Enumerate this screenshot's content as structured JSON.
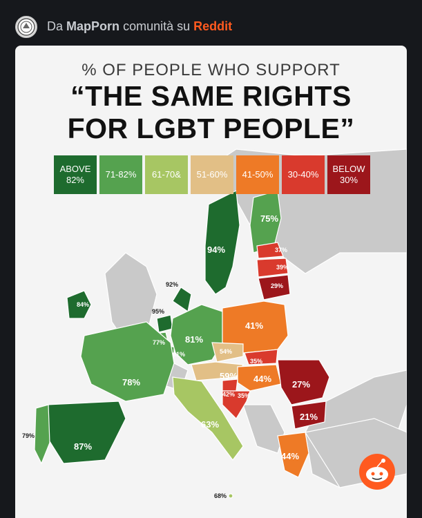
{
  "header": {
    "prefix": "Da",
    "community": "MapPorn",
    "middle": "comunità su",
    "platform": "Reddit"
  },
  "title": {
    "subtitle": "% OF PEOPLE WHO SUPPORT",
    "line1": "“THE SAME RIGHTS",
    "line2": "FOR LGBT PEOPLE”"
  },
  "legend": [
    {
      "label": "ABOVE\n82%",
      "color": "#1e6b2e"
    },
    {
      "label": "71-82%",
      "color": "#55a24f"
    },
    {
      "label": "61-70&",
      "color": "#a7c663"
    },
    {
      "label": "51-60%",
      "color": "#e2bf86"
    },
    {
      "label": "41-50%",
      "color": "#ee7a26"
    },
    {
      "label": "30-40%",
      "color": "#d93a2d"
    },
    {
      "label": "BELOW\n30%",
      "color": "#9c161b"
    }
  ],
  "countries": {
    "sweden": "94%",
    "finland": "75%",
    "estonia": "37%",
    "latvia": "39%",
    "lithuania": "29%",
    "denmark": "92%",
    "ireland": "84%",
    "netherlands": "95%",
    "belgium": "77%",
    "luxembourg": "81%",
    "germany": "81%",
    "poland": "41%",
    "czechia": "54%",
    "slovakia": "35%",
    "austria": "59%",
    "hungary": "44%",
    "slovenia": "42%",
    "croatia": "35%",
    "romania": "27%",
    "bulgaria": "21%",
    "france": "78%",
    "italy": "63%",
    "spain": "87%",
    "portugal": "79%",
    "greece": "44%",
    "malta": "68%"
  },
  "colors": {
    "sea": "#f4f4f4",
    "land": "#c7c7c7",
    "border": "#ffffff",
    "accent": "#ff5a1f"
  },
  "icons": {
    "avatar": "community-avatar-icon",
    "mascot": "reddit-snoo-icon"
  }
}
